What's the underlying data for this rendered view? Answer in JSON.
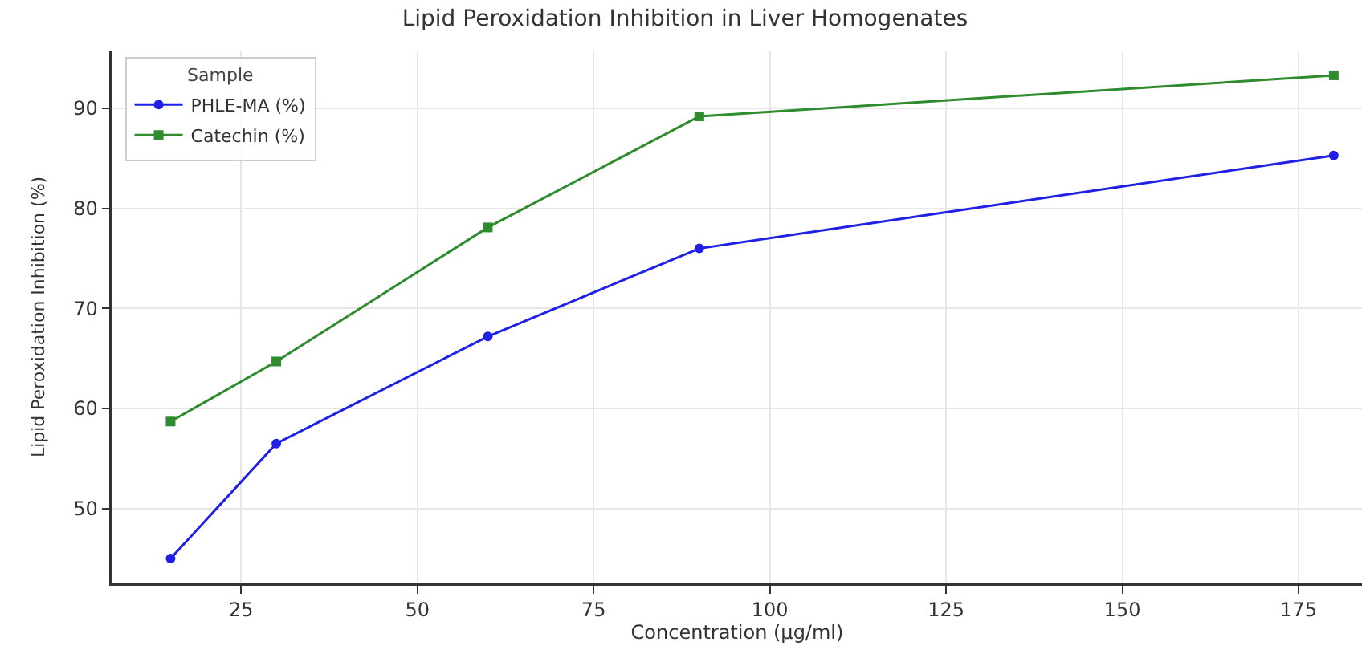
{
  "chart_data": {
    "type": "line",
    "title": "Lipid Peroxidation Inhibition in Liver Homogenates",
    "xlabel": "Concentration (μg/ml)",
    "ylabel": "Lipid Peroxidation Inhibition (%)",
    "legend_title": "Sample",
    "x": [
      15,
      30,
      60,
      90,
      180
    ],
    "series": [
      {
        "name": "PHLE-MA (%)",
        "color": "#1f1fe6",
        "values": [
          45.0,
          56.5,
          67.2,
          76.0,
          85.3
        ],
        "marker": "circle"
      },
      {
        "name": "Catechin (%)",
        "color": "#2e8b2e",
        "values": [
          58.7,
          64.7,
          78.1,
          89.2,
          93.3
        ],
        "marker": "square"
      }
    ],
    "xlim": [
      6.75,
      184
    ],
    "xticks": [
      25,
      50,
      75,
      100,
      125,
      150,
      175
    ],
    "ylim": [
      42.6,
      95.7
    ],
    "yticks": [
      50,
      60,
      70,
      80,
      90
    ],
    "grid": true,
    "legend": "top left",
    "line_style": "solid"
  }
}
